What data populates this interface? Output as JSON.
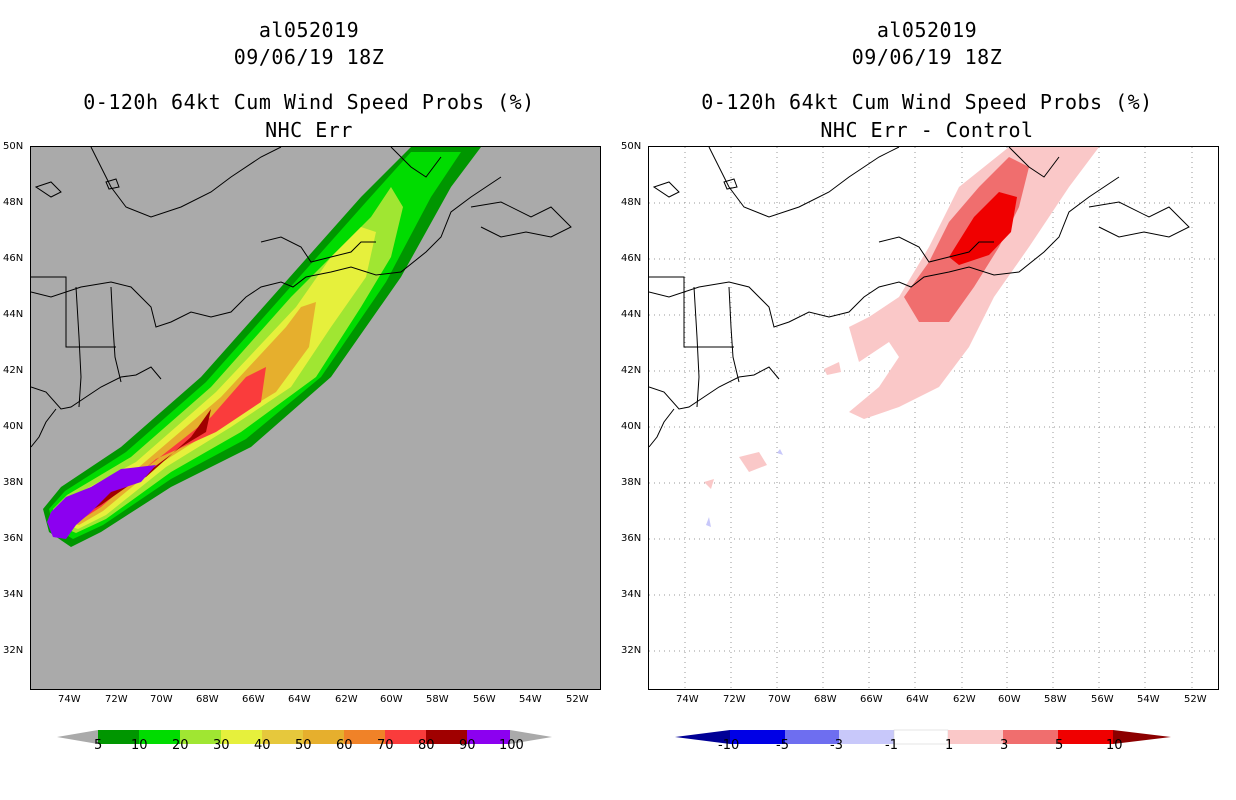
{
  "left_panel": {
    "title_storm": "al052019",
    "title_date": "09/06/19 18Z",
    "title_product": "0-120h 64kt Cum Wind Speed Probs (%)",
    "subtitle": "NHC Err",
    "colorbar_labels": [
      "5",
      "10",
      "20",
      "30",
      "40",
      "50",
      "60",
      "70",
      "80",
      "90",
      "100"
    ],
    "colors": [
      "#009600",
      "#00dc00",
      "#a0e632",
      "#e6f03c",
      "#e6c83c",
      "#e6af2d",
      "#f08228",
      "#fa3c3c",
      "#a00000",
      "#8c00f0"
    ],
    "background": "#aaaaaa"
  },
  "right_panel": {
    "title_storm": "al052019",
    "title_date": "09/06/19 18Z",
    "title_product": "0-120h 64kt Cum Wind Speed Probs (%)",
    "subtitle": "NHC Err - Control",
    "colorbar_labels": [
      "-10",
      "-5",
      "-3",
      "-1",
      "1",
      "3",
      "5",
      "10"
    ],
    "colors": [
      "#0000e6",
      "#6e6ef0",
      "#c8c8fa",
      "#ffffff",
      "#fac8c8",
      "#f06e6e",
      "#f00000",
      "#8c0000"
    ],
    "background": "#ffffff"
  },
  "axes": {
    "lat_labels": [
      "50N",
      "48N",
      "46N",
      "44N",
      "42N",
      "40N",
      "38N",
      "36N",
      "34N",
      "32N"
    ],
    "lon_labels": [
      "74W",
      "72W",
      "70W",
      "68W",
      "66W",
      "64W",
      "62W",
      "60W",
      "58W",
      "56W",
      "54W",
      "52W"
    ]
  }
}
